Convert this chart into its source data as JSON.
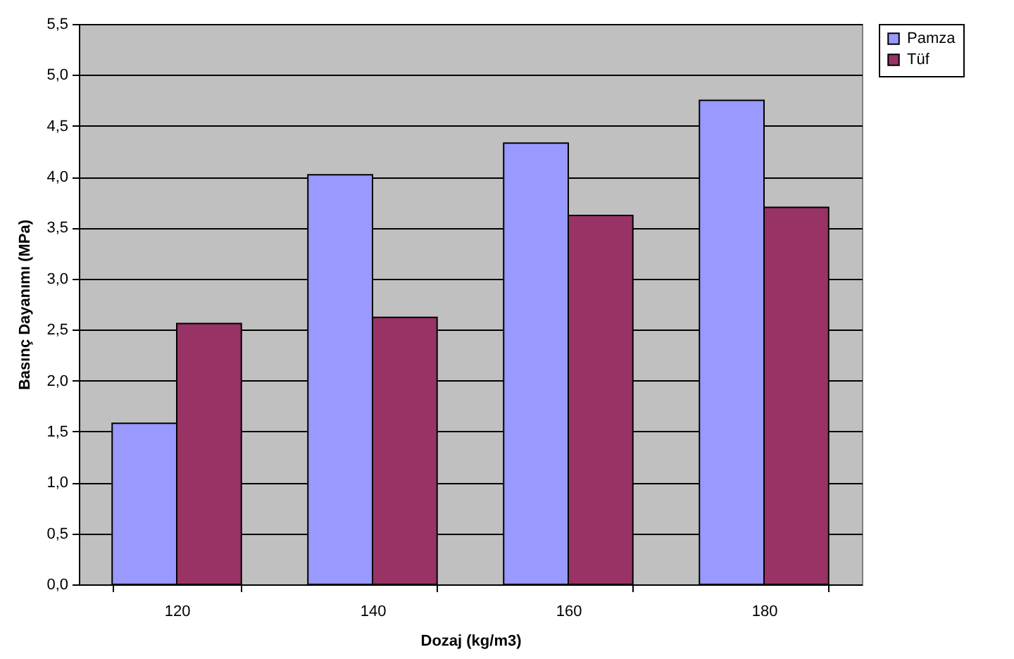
{
  "chart_data": {
    "type": "bar",
    "xlabel": "Dozaj (kg/m3)",
    "ylabel": "Basınç Dayanımı (MPa)",
    "categories": [
      "120",
      "140",
      "160",
      "180"
    ],
    "series": [
      {
        "name": "Pamza",
        "color": "#9999ff",
        "values": [
          1.58,
          4.02,
          4.33,
          4.75
        ]
      },
      {
        "name": "Tüf",
        "color": "#993366",
        "values": [
          2.56,
          2.62,
          3.62,
          3.7
        ]
      }
    ],
    "ylim": [
      0,
      5.5
    ],
    "yticks": [
      {
        "value": 0,
        "label": "0,0"
      },
      {
        "value": 0.5,
        "label": "0,5"
      },
      {
        "value": 1,
        "label": "1,0"
      },
      {
        "value": 1.5,
        "label": "1,5"
      },
      {
        "value": 2,
        "label": "2,0"
      },
      {
        "value": 2.5,
        "label": "2,5"
      },
      {
        "value": 3,
        "label": "3,0"
      },
      {
        "value": 3.5,
        "label": "3,5"
      },
      {
        "value": 4,
        "label": "4,0"
      },
      {
        "value": 4.5,
        "label": "4,5"
      },
      {
        "value": 5,
        "label": "5,0"
      },
      {
        "value": 5.5,
        "label": "5,5"
      }
    ],
    "grid": "y",
    "legend": "right"
  }
}
